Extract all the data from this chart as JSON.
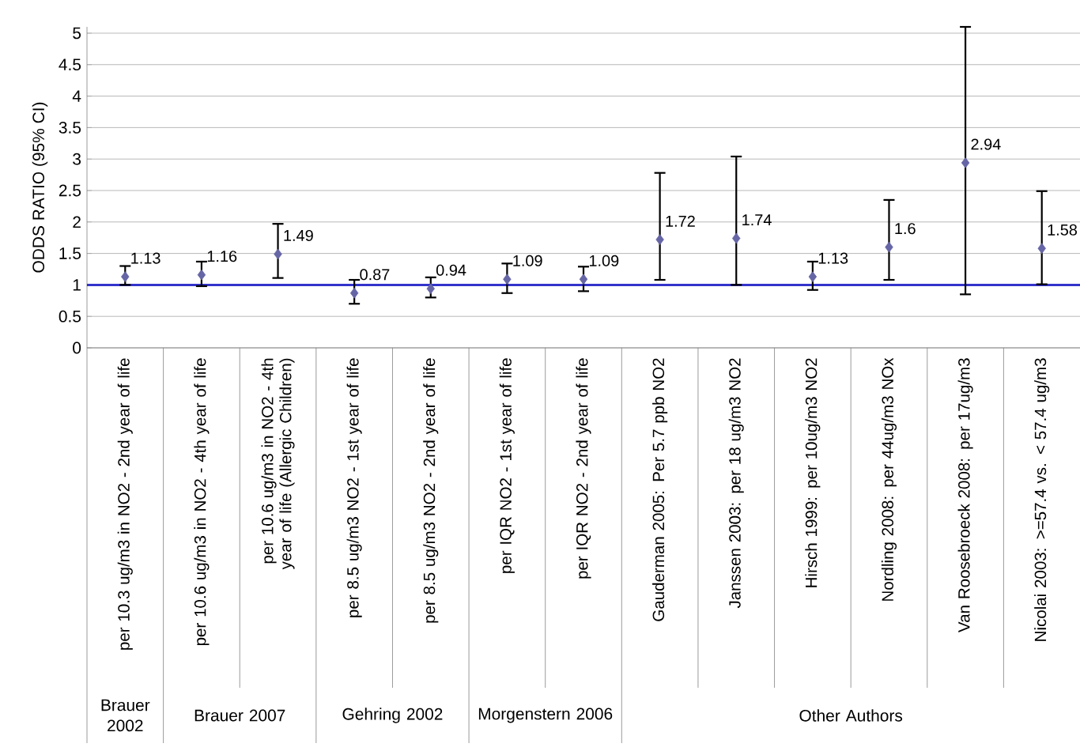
{
  "chart_data": {
    "type": "scatter",
    "ylabel": "ODDS RATIO (95% CI)",
    "categories": [
      "per 10.3 ug/m3 in NO2 - 2nd year of life",
      "per 10.6 ug/m3 in NO2 - 4th year of life",
      "per 10.6 ug/m3 in NO2 - 4th year of life (Allergic Children)",
      "per 8.5 ug/m3 NO2 - 1st year of life",
      "per 8.5 ug/m3 NO2 - 2nd year of life",
      "per IQR NO2 - 1st year of life",
      "per IQR NO2 - 2nd year of life",
      "Gauderman 2005:  Per 5.7 ppb NO2",
      "Janssen 2003:  per 18 ug/m3 NO2",
      "Hirsch 1999: per 10ug/m3 NO2",
      "Nordling 2008: per 44ug/m3 NOx",
      "Van Roosebroeck 2008:  per 17ug/m3",
      "Nicolai 2003: >=57.4 vs. < 57.4 ug/m3"
    ],
    "series": [
      {
        "color": "#6666a6",
        "values": [
          1.13,
          1.16,
          1.49,
          0.87,
          0.94,
          1.09,
          1.09,
          1.72,
          1.74,
          1.13,
          1.6,
          2.94,
          1.58
        ],
        "errors": [
          [
            1.0,
            1.3
          ],
          [
            0.98,
            1.37
          ],
          [
            1.11,
            1.97
          ],
          [
            0.7,
            1.08
          ],
          [
            0.8,
            1.12
          ],
          [
            0.87,
            1.34
          ],
          [
            0.9,
            1.29
          ],
          [
            1.08,
            2.78
          ],
          [
            1.0,
            3.04
          ],
          [
            0.92,
            1.37
          ],
          [
            1.08,
            2.35
          ],
          [
            0.85,
            5.1
          ],
          [
            1.01,
            2.49
          ]
        ]
      }
    ],
    "data_labels": true,
    "marker": "diamond",
    "grid": "y",
    "ylim": [
      0,
      5.1
    ],
    "yticks": [
      0,
      0.5,
      1,
      1.5,
      2,
      2.5,
      3,
      3.5,
      4,
      4.5,
      5
    ],
    "ref_lines": [
      {
        "axis": "y",
        "value": 1,
        "color": "#3333cc"
      }
    ],
    "annotations": [
      "Brauer 2002",
      "Brauer 2007",
      "Gehring 2002",
      "Morgenstern 2006",
      "Other Authors"
    ]
  }
}
